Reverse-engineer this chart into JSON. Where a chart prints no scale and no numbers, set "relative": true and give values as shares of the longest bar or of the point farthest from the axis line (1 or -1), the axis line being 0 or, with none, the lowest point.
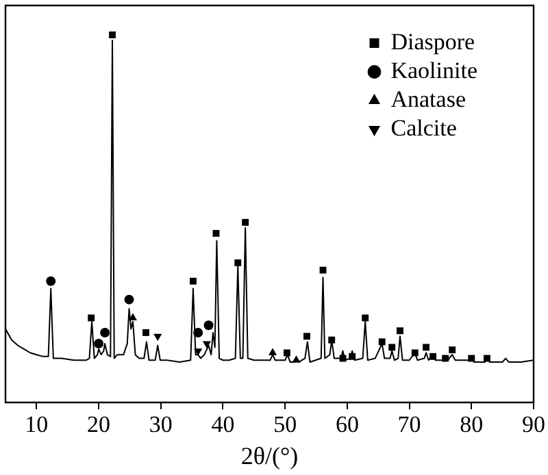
{
  "chart_data": {
    "type": "line",
    "relative": true,
    "xlabel": "2θ/(°)",
    "xlim": [
      5,
      90
    ],
    "xticks": [
      10,
      20,
      30,
      40,
      50,
      60,
      70,
      80,
      90
    ],
    "grid": false,
    "legend": "top right",
    "tick_labels": "x",
    "series": [
      {
        "color": "#000000",
        "marker": "none",
        "x": [
          5,
          6,
          7,
          8,
          9,
          10,
          11,
          11.9,
          12.3,
          12.7,
          14,
          16,
          18,
          18.5,
          18.9,
          19.3,
          19.8,
          20,
          20.4,
          20.8,
          21,
          21.4,
          21.9,
          22.2,
          22.5,
          23,
          24,
          24.6,
          24.9,
          25.2,
          25.5,
          25.9,
          26.5,
          27.3,
          27.7,
          28.1,
          29.1,
          29.5,
          29.9,
          31,
          33,
          34.8,
          35.2,
          35.6,
          36,
          36.4,
          37,
          37.7,
          38.1,
          38.4,
          38.7,
          39,
          39.4,
          40,
          41,
          42,
          42.4,
          42.8,
          43.2,
          43.6,
          44,
          45,
          46,
          47.6,
          48,
          48.4,
          50,
          50.4,
          50.8,
          51.5,
          51.8,
          52.2,
          53.2,
          53.6,
          54,
          55.8,
          56.1,
          56.4,
          57.2,
          57.5,
          57.9,
          59,
          59.3,
          59.6,
          60.5,
          60.8,
          61.2,
          62.5,
          62.9,
          63.3,
          64.5,
          65.6,
          66,
          66.9,
          67.2,
          67.6,
          68.2,
          68.5,
          68.9,
          70,
          70.9,
          71.3,
          72.4,
          72.7,
          73.1,
          73.8,
          74.2,
          75.5,
          75.8,
          76.2,
          76.9,
          77.4,
          79.7,
          80,
          80.4,
          82.2,
          82.5,
          82.9,
          85,
          85.5,
          86,
          88,
          90
        ],
        "values": [
          0.2,
          0.17,
          0.155,
          0.145,
          0.135,
          0.13,
          0.125,
          0.125,
          0.31,
          0.12,
          0.12,
          0.115,
          0.115,
          0.12,
          0.22,
          0.12,
          0.13,
          0.145,
          0.13,
          0.14,
          0.16,
          0.13,
          0.125,
          0.985,
          0.12,
          0.13,
          0.13,
          0.16,
          0.255,
          0.2,
          0.22,
          0.13,
          0.12,
          0.12,
          0.165,
          0.115,
          0.115,
          0.155,
          0.115,
          0.115,
          0.11,
          0.115,
          0.31,
          0.13,
          0.13,
          0.12,
          0.13,
          0.155,
          0.13,
          0.19,
          0.15,
          0.44,
          0.12,
          0.115,
          0.115,
          0.12,
          0.37,
          0.12,
          0.12,
          0.475,
          0.12,
          0.115,
          0.115,
          0.115,
          0.13,
          0.115,
          0.115,
          0.13,
          0.11,
          0.11,
          0.12,
          0.11,
          0.12,
          0.165,
          0.11,
          0.12,
          0.34,
          0.12,
          0.13,
          0.17,
          0.12,
          0.12,
          0.14,
          0.115,
          0.12,
          0.14,
          0.115,
          0.12,
          0.22,
          0.115,
          0.12,
          0.16,
          0.12,
          0.12,
          0.14,
          0.115,
          0.12,
          0.18,
          0.115,
          0.115,
          0.135,
          0.115,
          0.12,
          0.135,
          0.115,
          0.13,
          0.115,
          0.115,
          0.125,
          0.115,
          0.13,
          0.115,
          0.115,
          0.125,
          0.11,
          0.11,
          0.125,
          0.11,
          0.11,
          0.12,
          0.11,
          0.11,
          0.115
        ]
      },
      {
        "type": "scatter",
        "name": "Diaspore",
        "color": "#000000",
        "marker": "square",
        "x": [
          18.8,
          22.2,
          27.6,
          35.2,
          38.9,
          42.4,
          43.6,
          50.3,
          53.5,
          56.1,
          57.5,
          59.3,
          60.8,
          62.9,
          65.6,
          67.2,
          68.5,
          70.9,
          72.7,
          73.8,
          75.8,
          76.9,
          80,
          82.5
        ],
        "values": [
          0.23,
          1,
          0.19,
          0.33,
          0.46,
          0.38,
          0.49,
          0.135,
          0.18,
          0.36,
          0.17,
          0.12,
          0.125,
          0.23,
          0.165,
          0.15,
          0.195,
          0.135,
          0.15,
          0.125,
          0.12,
          0.143,
          0.12,
          0.12
        ]
      },
      {
        "type": "scatter",
        "name": "Kaolinite",
        "color": "#000000",
        "marker": "circle",
        "x": [
          12.3,
          20,
          21,
          24.9,
          36,
          37.7
        ],
        "values": [
          0.33,
          0.16,
          0.19,
          0.28,
          0.19,
          0.21
        ]
      },
      {
        "type": "scatter",
        "name": "Anatase",
        "color": "#000000",
        "marker": "triangle",
        "x": [
          25.5,
          48,
          51.8
        ],
        "values": [
          0.23,
          0.135,
          0.115
        ]
      },
      {
        "type": "scatter",
        "name": "Calcite",
        "color": "#000000",
        "marker": "triangle_down",
        "x": [
          29.5,
          36,
          37.4
        ],
        "values": [
          0.18,
          0.14,
          0.16
        ]
      }
    ]
  }
}
